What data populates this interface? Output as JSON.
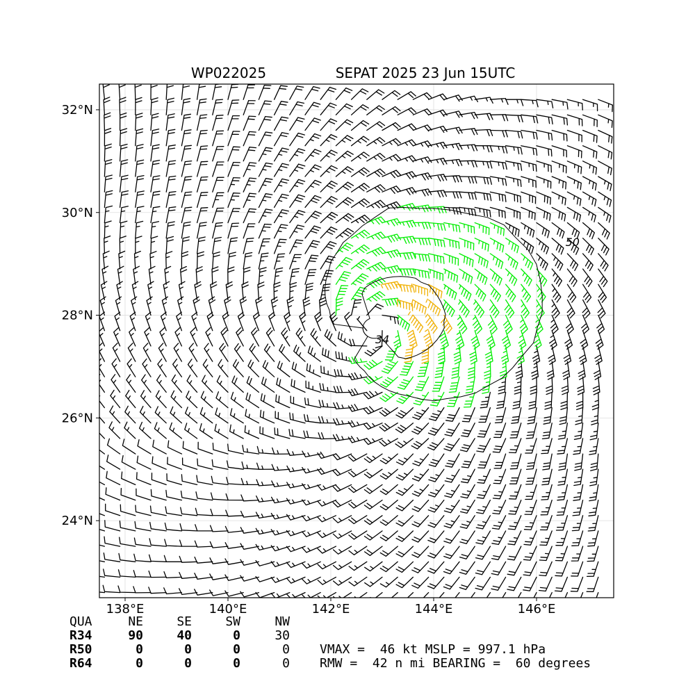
{
  "chart_data": {
    "type": "wind-barb-map",
    "title_left": "WP022025",
    "title_right": "SEPAT 2025 23 Jun 15UTC",
    "x_ticks": [
      {
        "value": 138,
        "label": "138°E"
      },
      {
        "value": 140,
        "label": "140°E"
      },
      {
        "value": 142,
        "label": "142°E"
      },
      {
        "value": 144,
        "label": "144°E"
      },
      {
        "value": 146,
        "label": "146°E"
      }
    ],
    "y_ticks": [
      {
        "value": 24,
        "label": "24°N"
      },
      {
        "value": 26,
        "label": "26°N"
      },
      {
        "value": 28,
        "label": "28°N"
      },
      {
        "value": 30,
        "label": "30°N"
      },
      {
        "value": 32,
        "label": "32°N"
      }
    ],
    "xlim": [
      137.5,
      147.5
    ],
    "ylim": [
      22.5,
      32.5
    ],
    "grid": true,
    "storm_center": {
      "lon": 142.85,
      "lat": 27.75
    },
    "contour_labels": [
      {
        "text": "34",
        "lon": 143.0,
        "lat": 27.45
      },
      {
        "text": "50",
        "lon": 146.7,
        "lat": 29.35
      }
    ],
    "wind_color_thresholds": [
      {
        "min": 34,
        "max": 50,
        "color": "#00ee00"
      },
      {
        "min": 50,
        "max": 64,
        "color": "#f0b000"
      },
      {
        "min": 0,
        "max": 34,
        "color": "#000000"
      }
    ]
  },
  "table": {
    "header": [
      "QUA",
      "NE",
      "SE",
      "SW",
      "NW"
    ],
    "rows": [
      [
        "R34",
        "90",
        "40",
        "0",
        "30"
      ],
      [
        "R50",
        "0",
        "0",
        "0",
        "0"
      ],
      [
        "R64",
        "0",
        "0",
        "0",
        "0"
      ]
    ]
  },
  "stats": {
    "line1": "VMAX =  46 kt MSLP = 997.1 hPa",
    "line2": "RMW =  42 n mi BEARING =  60 degrees"
  }
}
